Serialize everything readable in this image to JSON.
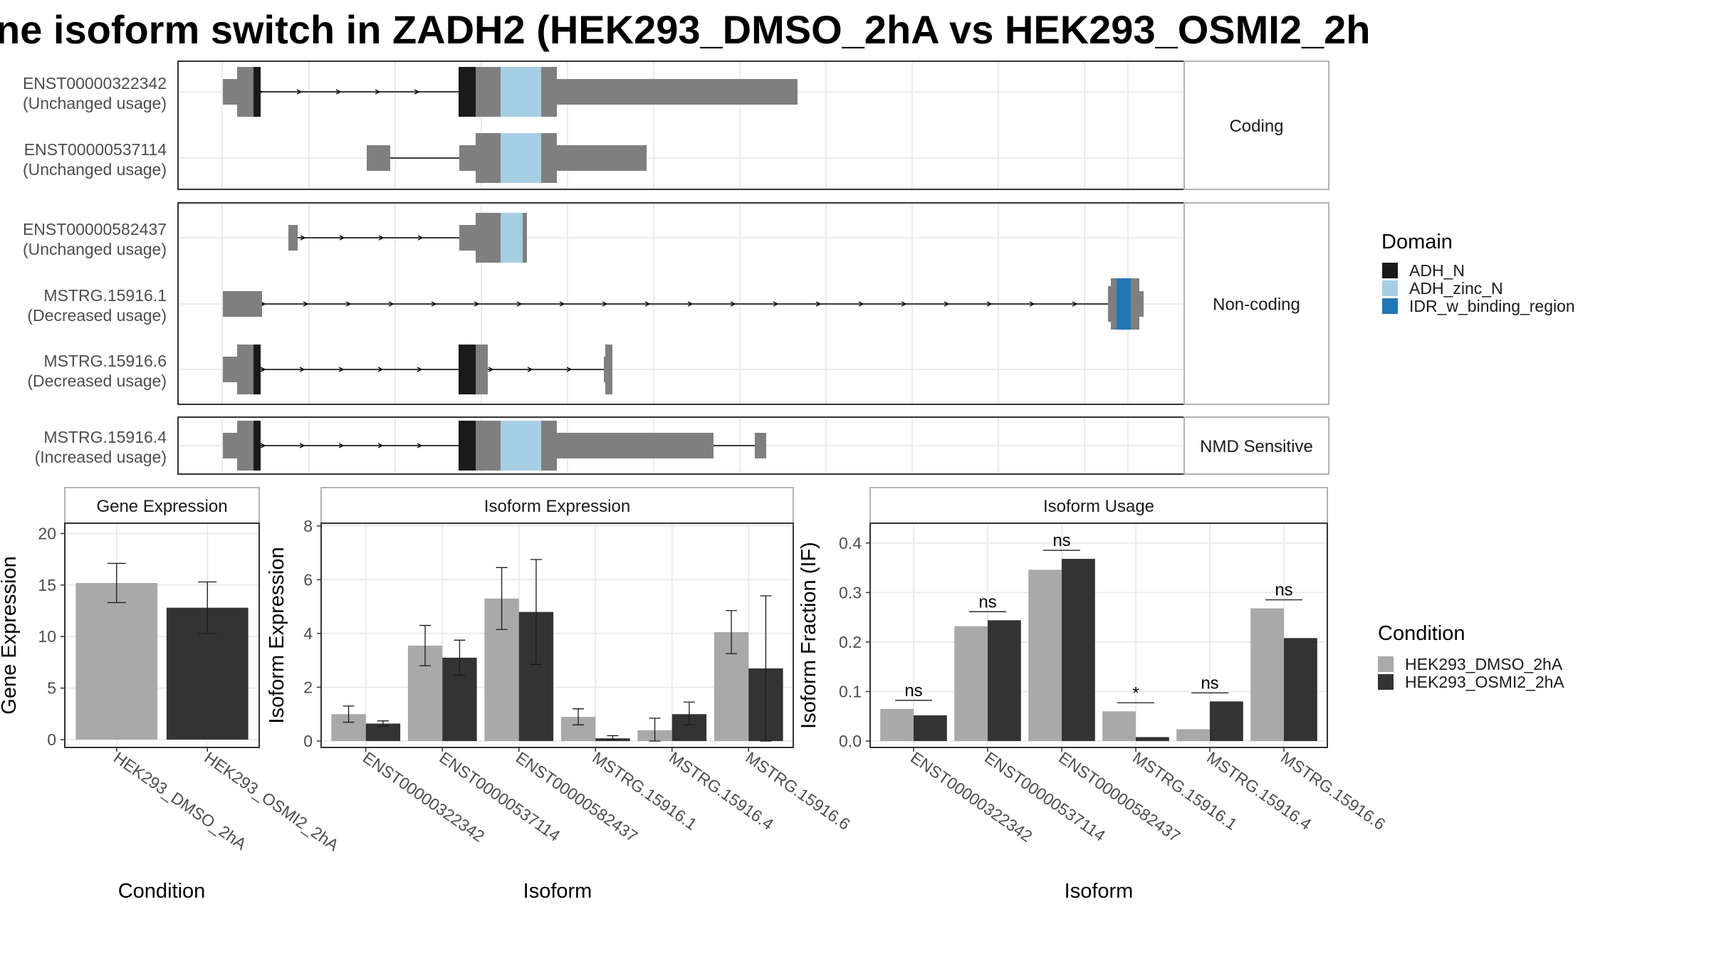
{
  "title": "ne isoform switch in ZADH2 (HEK293_DMSO_2hA vs HEK293_OSMI2_2h",
  "colors": {
    "exon": "#7f7f7f",
    "intron": "#000000",
    "ADH_N": "#1a1a1a",
    "ADH_zinc_N": "#a6cee3",
    "IDR_w_binding_region": "#1f78b4",
    "HEK293_DMSO_2hA": "#a9a9a9",
    "HEK293_OSMI2_2hA": "#333333",
    "panel_border": "#333333",
    "strip_border": "#b3b3b3",
    "grid": "#ebebeb"
  },
  "structure": {
    "groups": [
      {
        "label": "Coding",
        "transcripts": [
          {
            "id": "ENST00000322342",
            "usage": "(Unchanged usage)"
          },
          {
            "id": "ENST00000537114",
            "usage": "(Unchanged usage)"
          }
        ]
      },
      {
        "label": "Non-coding",
        "transcripts": [
          {
            "id": "ENST00000582437",
            "usage": "(Unchanged usage)"
          },
          {
            "id": "MSTRG.15916.1",
            "usage": "(Decreased usage)"
          },
          {
            "id": "MSTRG.15916.6",
            "usage": "(Decreased usage)"
          }
        ]
      },
      {
        "label": "NMD Sensitive",
        "transcripts": [
          {
            "id": "MSTRG.15916.4",
            "usage": "(Increased usage)"
          }
        ]
      }
    ]
  },
  "legend_domain": {
    "title": "Domain",
    "items": [
      "ADH_N",
      "ADH_zinc_N",
      "IDR_w_binding_region"
    ]
  },
  "legend_condition": {
    "title": "Condition",
    "items": [
      "HEK293_DMSO_2hA",
      "HEK293_OSMI2_2hA"
    ]
  },
  "chart_data": [
    {
      "type": "bar",
      "strip": "Gene Expression",
      "xlabel": "Condition",
      "ylabel": "Gene Expression",
      "ylim": [
        0,
        21
      ],
      "yticks": [
        0,
        5,
        10,
        15,
        20
      ],
      "categories": [
        "HEK293_DMSO_2hA",
        "HEK293_OSMI2_2hA"
      ],
      "values": [
        15.2,
        12.8
      ],
      "err_low": [
        13.3,
        10.3
      ],
      "err_high": [
        17.1,
        15.3
      ]
    },
    {
      "type": "bar",
      "strip": "Isoform Expression",
      "xlabel": "Isoform",
      "ylabel": "Isoform Expression",
      "ylim": [
        0,
        8.1
      ],
      "yticks": [
        0,
        2,
        4,
        6,
        8
      ],
      "categories": [
        "ENST00000322342",
        "ENST00000537114",
        "ENST00000582437",
        "MSTRG.15916.1",
        "MSTRG.15916.4",
        "MSTRG.15916.6"
      ],
      "series": [
        {
          "name": "HEK293_DMSO_2hA",
          "values": [
            1.0,
            3.55,
            5.3,
            0.9,
            0.4,
            4.05
          ],
          "err_low": [
            0.7,
            2.8,
            4.15,
            0.6,
            0.0,
            3.25
          ],
          "err_high": [
            1.3,
            4.3,
            6.45,
            1.2,
            0.85,
            4.85
          ]
        },
        {
          "name": "HEK293_OSMI2_2hA",
          "values": [
            0.65,
            3.1,
            4.8,
            0.1,
            1.0,
            2.7
          ],
          "err_low": [
            0.55,
            2.45,
            2.85,
            0.05,
            0.6,
            0.0
          ],
          "err_high": [
            0.75,
            3.75,
            6.75,
            0.2,
            1.45,
            5.4
          ]
        }
      ]
    },
    {
      "type": "bar",
      "strip": "Isoform Usage",
      "xlabel": "Isoform",
      "ylabel": "Isoform Fraction (IF)",
      "ylim": [
        0,
        0.44
      ],
      "yticks": [
        0.0,
        0.1,
        0.2,
        0.3,
        0.4
      ],
      "ytick_labels": [
        "0.0",
        "0.1",
        "0.2",
        "0.3",
        "0.4"
      ],
      "categories": [
        "ENST00000322342",
        "ENST00000537114",
        "ENST00000582437",
        "MSTRG.15916.1",
        "MSTRG.15916.4",
        "MSTRG.15916.6"
      ],
      "series": [
        {
          "name": "HEK293_DMSO_2hA",
          "values": [
            0.065,
            0.232,
            0.346,
            0.06,
            0.024,
            0.268
          ]
        },
        {
          "name": "HEK293_OSMI2_2hA",
          "values": [
            0.052,
            0.244,
            0.368,
            0.008,
            0.08,
            0.208
          ]
        }
      ],
      "significance": [
        "ns",
        "ns",
        "ns",
        "*",
        "ns",
        "ns"
      ]
    }
  ]
}
